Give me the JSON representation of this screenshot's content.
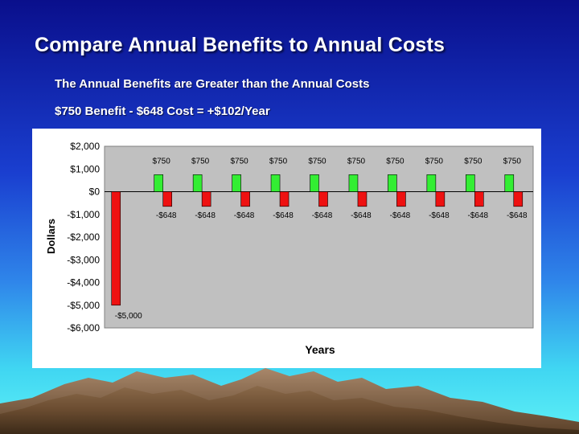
{
  "slide": {
    "title": "Compare Annual Benefits to Annual Costs",
    "subtitle1": "The Annual Benefits are Greater than the Annual Costs",
    "subtitle2": "$750 Benefit - $648 Cost = +$102/Year"
  },
  "colors": {
    "benefit": "#33ee33",
    "cost": "#ee1111",
    "plot_background": "#c0c0c0"
  },
  "chart_data": {
    "type": "bar",
    "title": "",
    "xlabel": "Years",
    "ylabel": "Dollars",
    "ylim": [
      -6000,
      2000
    ],
    "yticks": [
      2000,
      1000,
      0,
      -1000,
      -2000,
      -3000,
      -4000,
      -5000,
      -6000
    ],
    "ytick_labels": [
      "$2,000",
      "$1,000",
      "$0",
      "-$1,000",
      "-$2,000",
      "-$3,000",
      "-$4,000",
      "-$5,000",
      "-$6,000"
    ],
    "grid": false,
    "legend": "none",
    "initial_cost": {
      "value": -5000,
      "label": "-$5,000"
    },
    "periods": 10,
    "series": [
      {
        "role": "benefit",
        "values": [
          750,
          750,
          750,
          750,
          750,
          750,
          750,
          750,
          750,
          750
        ],
        "labels": [
          "$750",
          "$750",
          "$750",
          "$750",
          "$750",
          "$750",
          "$750",
          "$750",
          "$750",
          "$750"
        ]
      },
      {
        "role": "cost",
        "values": [
          -648,
          -648,
          -648,
          -648,
          -648,
          -648,
          -648,
          -648,
          -648,
          -648
        ],
        "labels": [
          "-$648",
          "-$648",
          "-$648",
          "-$648",
          "-$648",
          "-$648",
          "-$648",
          "-$648",
          "-$648",
          "-$648"
        ]
      }
    ]
  }
}
